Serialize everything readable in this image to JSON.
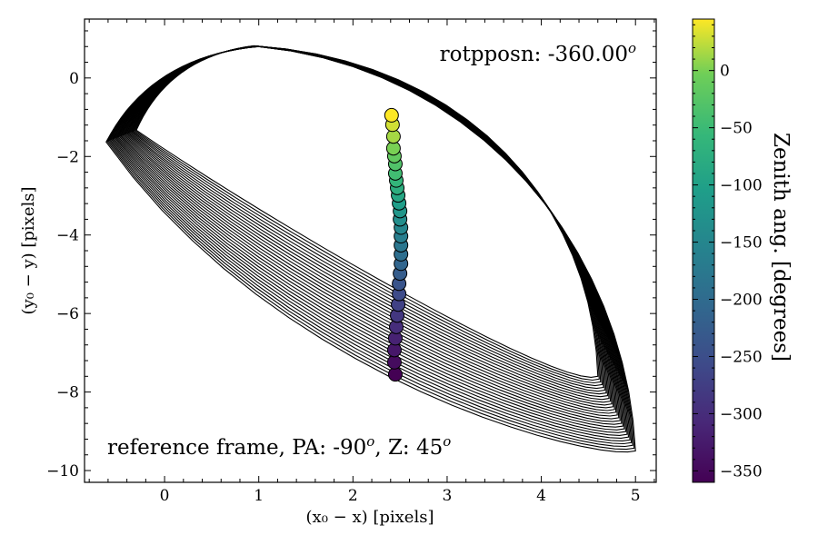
{
  "chart_data": {
    "type": "scatter",
    "xlabel": "(x₀ −  x) [pixels]",
    "ylabel": "(y₀ −  y) [pixels]",
    "xlim": [
      -0.85,
      5.22
    ],
    "ylim": [
      -10.3,
      1.5
    ],
    "xticks": [
      0,
      1,
      2,
      3,
      4,
      5
    ],
    "yticks": [
      0,
      -2,
      -4,
      -6,
      -8,
      -10
    ],
    "annotation_top": {
      "text": "rotpposn: -360.00",
      "sup": "o"
    },
    "annotation_bottom": {
      "parts": [
        "reference frame, PA: -90",
        "o",
        ", Z: 45",
        "o"
      ]
    },
    "colorbar": {
      "label": "Zenith ang. [degrees]",
      "range": [
        -360,
        45
      ],
      "ticks": [
        0,
        -50,
        -100,
        -150,
        -200,
        -250,
        -300,
        -350
      ],
      "colormap": "viridis"
    },
    "points": {
      "x": [
        2.45,
        2.44,
        2.44,
        2.45,
        2.46,
        2.47,
        2.48,
        2.49,
        2.49,
        2.5,
        2.51,
        2.51,
        2.51,
        2.51,
        2.51,
        2.5,
        2.5,
        2.49,
        2.48,
        2.47,
        2.46,
        2.45,
        2.45,
        2.44,
        2.43,
        2.43,
        2.42,
        2.41
      ],
      "y": [
        -7.55,
        -7.24,
        -6.93,
        -6.63,
        -6.34,
        -6.05,
        -5.77,
        -5.5,
        -5.24,
        -4.98,
        -4.73,
        -4.49,
        -4.26,
        -4.03,
        -3.81,
        -3.6,
        -3.39,
        -3.19,
        -2.99,
        -2.8,
        -2.61,
        -2.43,
        -2.19,
        -1.99,
        -1.79,
        -1.49,
        -1.19,
        -0.95
      ],
      "zenith": [
        -360,
        -345,
        -330,
        -315,
        -300,
        -285,
        -270,
        -255,
        -240,
        -225,
        -210,
        -195,
        -180,
        -165,
        -150,
        -135,
        -120,
        -105,
        -90,
        -75,
        -60,
        -45,
        -30,
        -15,
        0,
        15,
        30,
        45
      ]
    },
    "curves": {
      "count": 28,
      "description_of_family": "Outlines anchored along a common upper arc; the lower edges shift downward with each successive outline."
    }
  }
}
